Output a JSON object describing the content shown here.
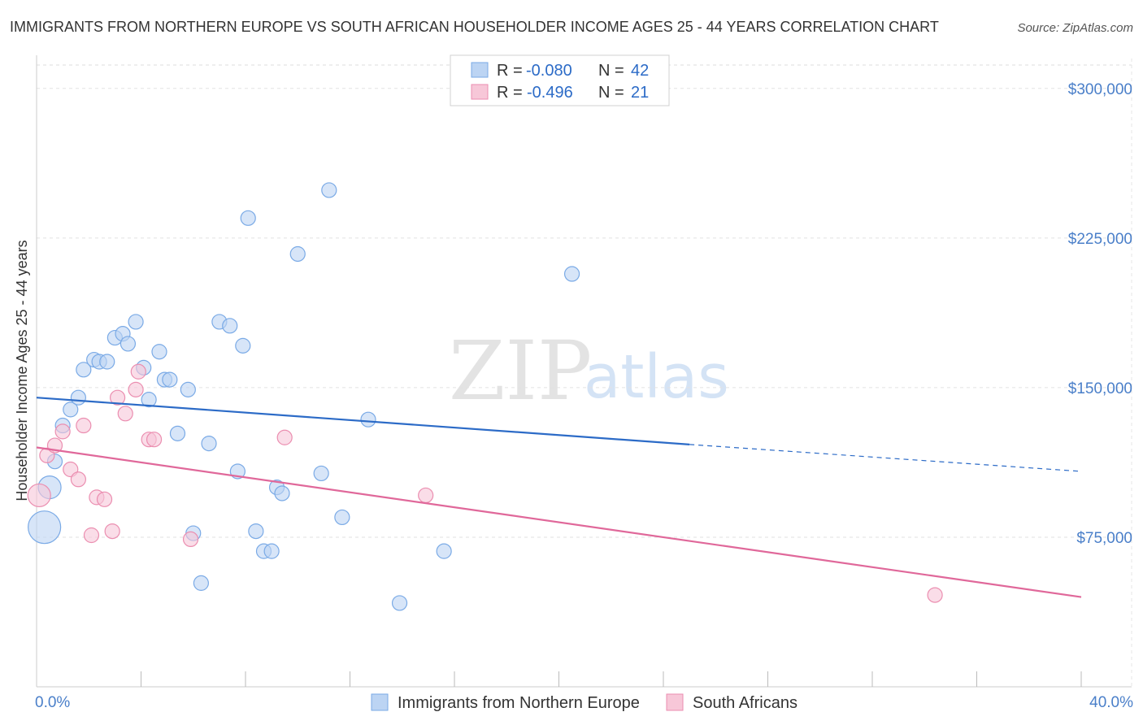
{
  "chart_data": {
    "type": "scatter",
    "title": "IMMIGRANTS FROM NORTHERN EUROPE VS SOUTH AFRICAN HOUSEHOLDER INCOME AGES 25 - 44 YEARS CORRELATION CHART",
    "source": "Source: ZipAtlas.com",
    "ylabel": "Householder Income Ages 25 - 44 years",
    "xlim": [
      0,
      40
    ],
    "ylim": [
      0,
      315000
    ],
    "x_tick_labels": [
      {
        "x": 0,
        "label": "0.0%"
      },
      {
        "x": 40,
        "label": "40.0%"
      }
    ],
    "y_ticks": [
      {
        "y": 75000,
        "label": "$75,000"
      },
      {
        "y": 150000,
        "label": "$150,000"
      },
      {
        "y": 225000,
        "label": "$225,000"
      },
      {
        "y": 300000,
        "label": "$300,000"
      }
    ],
    "watermark": {
      "zip": "ZIP",
      "atlas": "atlas"
    },
    "legend": [
      {
        "label": "R = ",
        "r": "-0.080",
        "n_label": "N = ",
        "n": "42"
      },
      {
        "label": "R = ",
        "r": "-0.496",
        "n_label": "N = ",
        "n": "21"
      }
    ],
    "series": [
      {
        "name": "Immigrants from Northern Europe",
        "color": "#7aaae6",
        "fill": "#bcd4f3",
        "trend": {
          "x0": 0,
          "y0": 145000,
          "x1": 25,
          "y1": 121500,
          "dash_to_x": 40,
          "dash_to_y": 108000
        },
        "points": [
          {
            "x": 0.3,
            "y": 80000,
            "big": 2
          },
          {
            "x": 0.5,
            "y": 100000,
            "big": 1
          },
          {
            "x": 0.7,
            "y": 113000
          },
          {
            "x": 1.0,
            "y": 131000
          },
          {
            "x": 1.3,
            "y": 139000
          },
          {
            "x": 1.6,
            "y": 145000
          },
          {
            "x": 1.8,
            "y": 159000
          },
          {
            "x": 2.2,
            "y": 164000
          },
          {
            "x": 2.4,
            "y": 163000
          },
          {
            "x": 2.7,
            "y": 163000
          },
          {
            "x": 3.0,
            "y": 175000
          },
          {
            "x": 3.3,
            "y": 177000
          },
          {
            "x": 3.5,
            "y": 172000
          },
          {
            "x": 3.8,
            "y": 183000
          },
          {
            "x": 4.1,
            "y": 160000
          },
          {
            "x": 4.3,
            "y": 144000
          },
          {
            "x": 4.7,
            "y": 168000
          },
          {
            "x": 4.9,
            "y": 154000
          },
          {
            "x": 5.1,
            "y": 154000
          },
          {
            "x": 5.4,
            "y": 127000
          },
          {
            "x": 5.8,
            "y": 149000
          },
          {
            "x": 6.0,
            "y": 77000
          },
          {
            "x": 6.3,
            "y": 52000
          },
          {
            "x": 6.6,
            "y": 122000
          },
          {
            "x": 7.0,
            "y": 183000
          },
          {
            "x": 7.4,
            "y": 181000
          },
          {
            "x": 7.7,
            "y": 108000
          },
          {
            "x": 7.9,
            "y": 171000
          },
          {
            "x": 8.1,
            "y": 235000
          },
          {
            "x": 8.4,
            "y": 78000
          },
          {
            "x": 8.7,
            "y": 68000
          },
          {
            "x": 9.0,
            "y": 68000
          },
          {
            "x": 9.2,
            "y": 100000
          },
          {
            "x": 9.4,
            "y": 97000
          },
          {
            "x": 10.0,
            "y": 217000
          },
          {
            "x": 10.9,
            "y": 107000
          },
          {
            "x": 11.2,
            "y": 249000
          },
          {
            "x": 11.7,
            "y": 85000
          },
          {
            "x": 12.7,
            "y": 134000
          },
          {
            "x": 13.9,
            "y": 42000
          },
          {
            "x": 15.6,
            "y": 68000
          },
          {
            "x": 20.5,
            "y": 207000
          }
        ]
      },
      {
        "name": "South Africans",
        "color": "#eb8eb0",
        "fill": "#f7c7d8",
        "trend": {
          "x0": 0,
          "y0": 120000,
          "x1": 40,
          "y1": 45000
        },
        "points": [
          {
            "x": 0.1,
            "y": 96000,
            "big": 1
          },
          {
            "x": 0.4,
            "y": 116000
          },
          {
            "x": 0.7,
            "y": 121000
          },
          {
            "x": 1.0,
            "y": 128000
          },
          {
            "x": 1.3,
            "y": 109000
          },
          {
            "x": 1.6,
            "y": 104000
          },
          {
            "x": 1.8,
            "y": 131000
          },
          {
            "x": 2.1,
            "y": 76000
          },
          {
            "x": 2.3,
            "y": 95000
          },
          {
            "x": 2.6,
            "y": 94000
          },
          {
            "x": 2.9,
            "y": 78000
          },
          {
            "x": 3.1,
            "y": 145000
          },
          {
            "x": 3.4,
            "y": 137000
          },
          {
            "x": 3.8,
            "y": 149000
          },
          {
            "x": 3.9,
            "y": 158000
          },
          {
            "x": 4.3,
            "y": 124000
          },
          {
            "x": 4.5,
            "y": 124000
          },
          {
            "x": 5.9,
            "y": 74000
          },
          {
            "x": 9.5,
            "y": 125000
          },
          {
            "x": 14.9,
            "y": 96000
          },
          {
            "x": 34.4,
            "y": 46000
          }
        ]
      }
    ]
  }
}
